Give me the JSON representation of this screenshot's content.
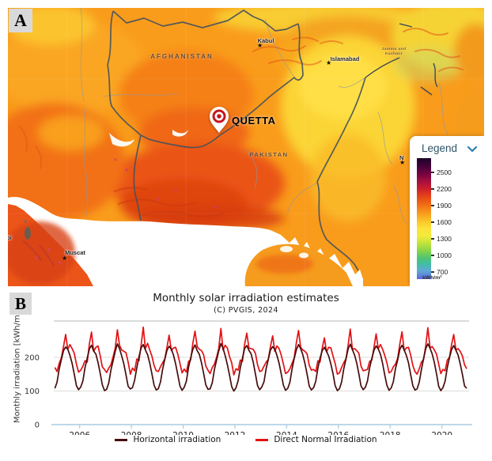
{
  "panel_a": {
    "badge": "A",
    "labels": {
      "country_afghanistan": "AFGHANISTAN",
      "country_pakistan": "PAKISTAN",
      "region_jammu_kashmir_line1": "Jammu and",
      "region_jammu_kashmir_line2": "Kashmir",
      "marker_city": "QUETTA",
      "partial_city_left": "bi",
      "partial_city_right": "N"
    },
    "cities": [
      {
        "name": "Kabul"
      },
      {
        "name": "Islamabad"
      },
      {
        "name": "Muscat"
      }
    ],
    "legend": {
      "title": "Legend",
      "unit": "kWh/m²",
      "ticks": [
        "2500",
        "2200",
        "1900",
        "1600",
        "1300",
        "1000",
        "700"
      ],
      "gradient": [
        {
          "c": "#1c0128",
          "p": 0
        },
        {
          "c": "#45023a",
          "p": 7
        },
        {
          "c": "#740341",
          "p": 13
        },
        {
          "c": "#a40f3e",
          "p": 19
        },
        {
          "c": "#cc1c2b",
          "p": 25
        },
        {
          "c": "#e2411a",
          "p": 31
        },
        {
          "c": "#f06a13",
          "p": 38
        },
        {
          "c": "#f7981d",
          "p": 45
        },
        {
          "c": "#fbc429",
          "p": 52
        },
        {
          "c": "#fde23a",
          "p": 58
        },
        {
          "c": "#f4ea3b",
          "p": 64
        },
        {
          "c": "#c4e43b",
          "p": 70
        },
        {
          "c": "#8ed647",
          "p": 76
        },
        {
          "c": "#55c46d",
          "p": 82
        },
        {
          "c": "#3fbfa0",
          "p": 87
        },
        {
          "c": "#5fa9d5",
          "p": 93
        },
        {
          "c": "#5a68e0",
          "p": 100
        }
      ]
    }
  },
  "panel_b": {
    "badge": "B"
  },
  "chart_data": {
    "type": "line",
    "title": "Monthly solar irradiation estimates",
    "subtitle": "(C) PVGIS, 2024",
    "ylabel": "Monthly irradiation [kWh/m2]",
    "xlim": [
      2005.0,
      2021.05
    ],
    "ylim": [
      0,
      308
    ],
    "x_ticks": [
      2006,
      2008,
      2010,
      2012,
      2014,
      2016,
      2018,
      2020
    ],
    "y_ticks": [
      0,
      100,
      200
    ],
    "grid": "horizontal",
    "legend_position": "bottom",
    "x_start": 2005.0417,
    "x_step_years": 0.0833333,
    "series": [
      {
        "name": "Horizontal irradiation",
        "color": "#470c0c",
        "values": [
          108,
          126,
          165,
          193,
          220,
          231,
          224,
          206,
          182,
          150,
          116,
          104,
          112,
          130,
          170,
          198,
          225,
          236,
          219,
          210,
          185,
          154,
          119,
          101,
          105,
          124,
          162,
          190,
          218,
          240,
          226,
          204,
          180,
          148,
          114,
          106,
          110,
          132,
          168,
          202,
          228,
          238,
          222,
          208,
          183,
          152,
          117,
          103,
          107,
          127,
          166,
          195,
          221,
          233,
          225,
          207,
          181,
          149,
          115,
          102,
          111,
          129,
          171,
          199,
          224,
          237,
          220,
          209,
          184,
          153,
          118,
          105,
          106,
          125,
          164,
          192,
          219,
          241,
          227,
          205,
          179,
          147,
          113,
          100,
          109,
          131,
          169,
          197,
          226,
          235,
          221,
          211,
          186,
          151,
          116,
          104,
          112,
          128,
          167,
          194,
          222,
          232,
          224,
          206,
          182,
          150,
          117,
          102,
          108,
          126,
          165,
          196,
          223,
          238,
          226,
          208,
          181,
          149,
          114,
          103,
          110,
          129,
          168,
          198,
          220,
          230,
          218,
          204,
          180,
          152,
          116,
          101,
          107,
          127,
          166,
          195,
          225,
          239,
          223,
          207,
          183,
          151,
          115,
          104,
          111,
          130,
          169,
          197,
          221,
          234,
          225,
          209,
          182,
          148,
          117,
          102,
          109,
          128,
          167,
          193,
          224,
          236,
          222,
          206,
          184,
          150,
          116,
          103,
          106,
          126,
          164,
          196,
          226,
          240,
          227,
          210,
          185,
          152,
          114,
          101,
          110,
          129,
          170,
          199,
          223,
          235,
          221,
          207,
          181,
          149,
          115,
          108
        ]
      },
      {
        "name": "Direct Normal Irradiation",
        "color": "#e31114",
        "values": [
          170,
          158,
          182,
          198,
          232,
          268,
          224,
          238,
          226,
          212,
          180,
          156,
          162,
          174,
          190,
          186,
          240,
          275,
          218,
          230,
          234,
          206,
          172,
          164,
          155,
          168,
          178,
          202,
          228,
          282,
          236,
          222,
          218,
          214,
          186,
          150,
          168,
          160,
          195,
          190,
          236,
          290,
          226,
          242,
          222,
          204,
          176,
          160,
          158,
          172,
          184,
          196,
          230,
          266,
          220,
          228,
          230,
          210,
          182,
          154,
          165,
          156,
          188,
          192,
          242,
          278,
          232,
          224,
          220,
          208,
          174,
          162,
          152,
          170,
          180,
          200,
          226,
          286,
          222,
          236,
          228,
          202,
          184,
          148,
          166,
          162,
          192,
          188,
          238,
          272,
          228,
          226,
          224,
          212,
          178,
          158,
          160,
          174,
          186,
          194,
          232,
          264,
          218,
          234,
          226,
          206,
          180,
          152,
          156,
          166,
          182,
          198,
          244,
          280,
          230,
          222,
          218,
          210,
          176,
          162,
          164,
          158,
          190,
          186,
          228,
          258,
          216,
          230,
          228,
          204,
          182,
          150,
          154,
          170,
          184,
          196,
          236,
          284,
          224,
          226,
          220,
          212,
          174,
          160,
          162,
          164,
          188,
          192,
          230,
          270,
          226,
          238,
          224,
          206,
          184,
          154,
          158,
          172,
          180,
          198,
          240,
          276,
          220,
          228,
          230,
          208,
          176,
          158,
          150,
          166,
          186,
          194,
          234,
          288,
          228,
          232,
          222,
          210,
          180,
          152,
          164,
          160,
          192,
          200,
          238,
          268,
          222,
          226,
          218,
          204,
          178,
          166
        ]
      }
    ]
  }
}
